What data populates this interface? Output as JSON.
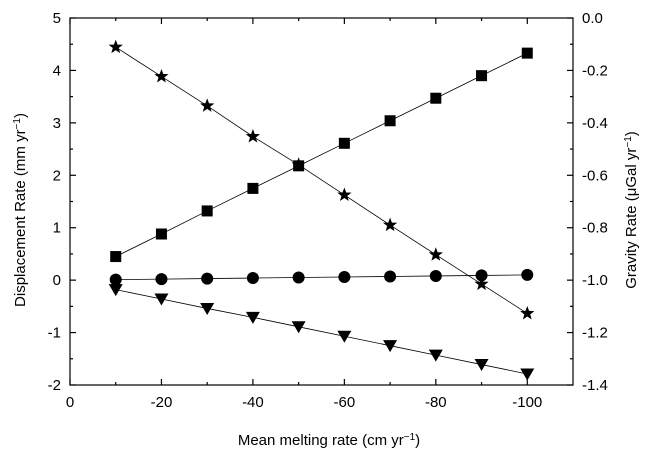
{
  "chart_data": {
    "type": "line",
    "xlabel": "Mean melting rate (cm yr",
    "xlabel_sup": "−1",
    "xlabel_end": ")",
    "ylabel_left": "Displacement Rate (mm yr",
    "ylabel_left_sup": "−1",
    "ylabel_left_end": ")",
    "ylabel_right": "Gravity Rate (μGal yr",
    "ylabel_right_sup": "−1",
    "ylabel_right_end": ")",
    "xlim": [
      0,
      -110
    ],
    "ylim_left": [
      -2,
      5
    ],
    "ylim_right": [
      -1.4,
      0.0
    ],
    "x_ticks": [
      0,
      -20,
      -40,
      -60,
      -80,
      -100
    ],
    "x_tick_labels": [
      "0",
      "-20",
      "-40",
      "-60",
      "-80",
      "-100"
    ],
    "y_left_ticks": [
      -2,
      -1,
      0,
      1,
      2,
      3,
      4,
      5
    ],
    "y_left_tick_labels": [
      "-2",
      "-1",
      "0",
      "1",
      "2",
      "3",
      "4",
      "5"
    ],
    "y_right_ticks": [
      -1.4,
      -1.2,
      -1.0,
      -0.8,
      -0.6,
      -0.4,
      -0.2,
      0.0
    ],
    "y_right_tick_labels": [
      "-1.4",
      "-1.2",
      "-1.0",
      "-0.8",
      "-0.6",
      "-0.4",
      "-0.2",
      "0.0"
    ],
    "x": [
      -10,
      -20,
      -30,
      -40,
      -50,
      -60,
      -70,
      -80,
      -90,
      -100
    ],
    "series": [
      {
        "marker": "square",
        "axis": "left",
        "values": [
          0.45,
          0.88,
          1.32,
          1.75,
          2.18,
          2.61,
          3.04,
          3.47,
          3.9,
          4.33
        ]
      },
      {
        "marker": "circle",
        "axis": "left",
        "values": [
          0.01,
          0.02,
          0.03,
          0.04,
          0.05,
          0.06,
          0.07,
          0.08,
          0.09,
          0.1
        ]
      },
      {
        "marker": "triangle-down",
        "axis": "left",
        "values": [
          -0.18,
          -0.36,
          -0.54,
          -0.71,
          -0.89,
          -1.07,
          -1.25,
          -1.43,
          -1.61,
          -1.79
        ]
      },
      {
        "marker": "star",
        "axis": "right",
        "values": [
          -0.111,
          -0.223,
          -0.335,
          -0.452,
          -0.56,
          -0.675,
          -0.79,
          -0.903,
          -1.015,
          -1.127
        ]
      }
    ],
    "grid": false,
    "legend": "none"
  }
}
